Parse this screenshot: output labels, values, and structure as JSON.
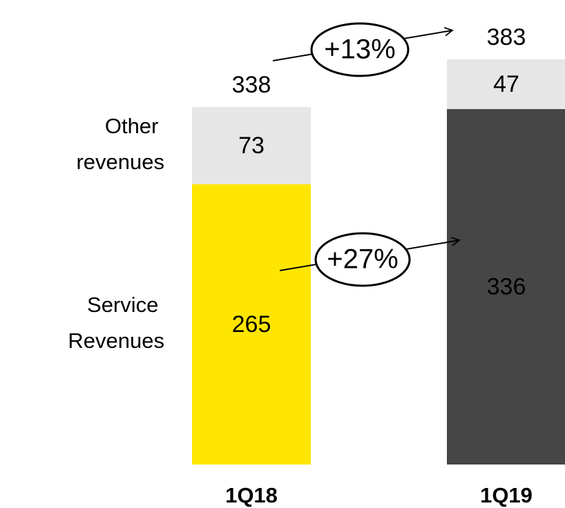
{
  "chart_data": {
    "type": "stacked_bar",
    "categories": [
      "1Q18",
      "1Q19"
    ],
    "series": [
      {
        "name": "Service Revenues",
        "colors": [
          "#FFE600",
          "#464646"
        ],
        "values": [
          265,
          336
        ]
      },
      {
        "name": "Other revenues",
        "color": "#E6E6E6",
        "values": [
          73,
          47
        ]
      }
    ],
    "totals": [
      338,
      383
    ],
    "annotations": [
      "+13%",
      "+27%"
    ]
  }
}
